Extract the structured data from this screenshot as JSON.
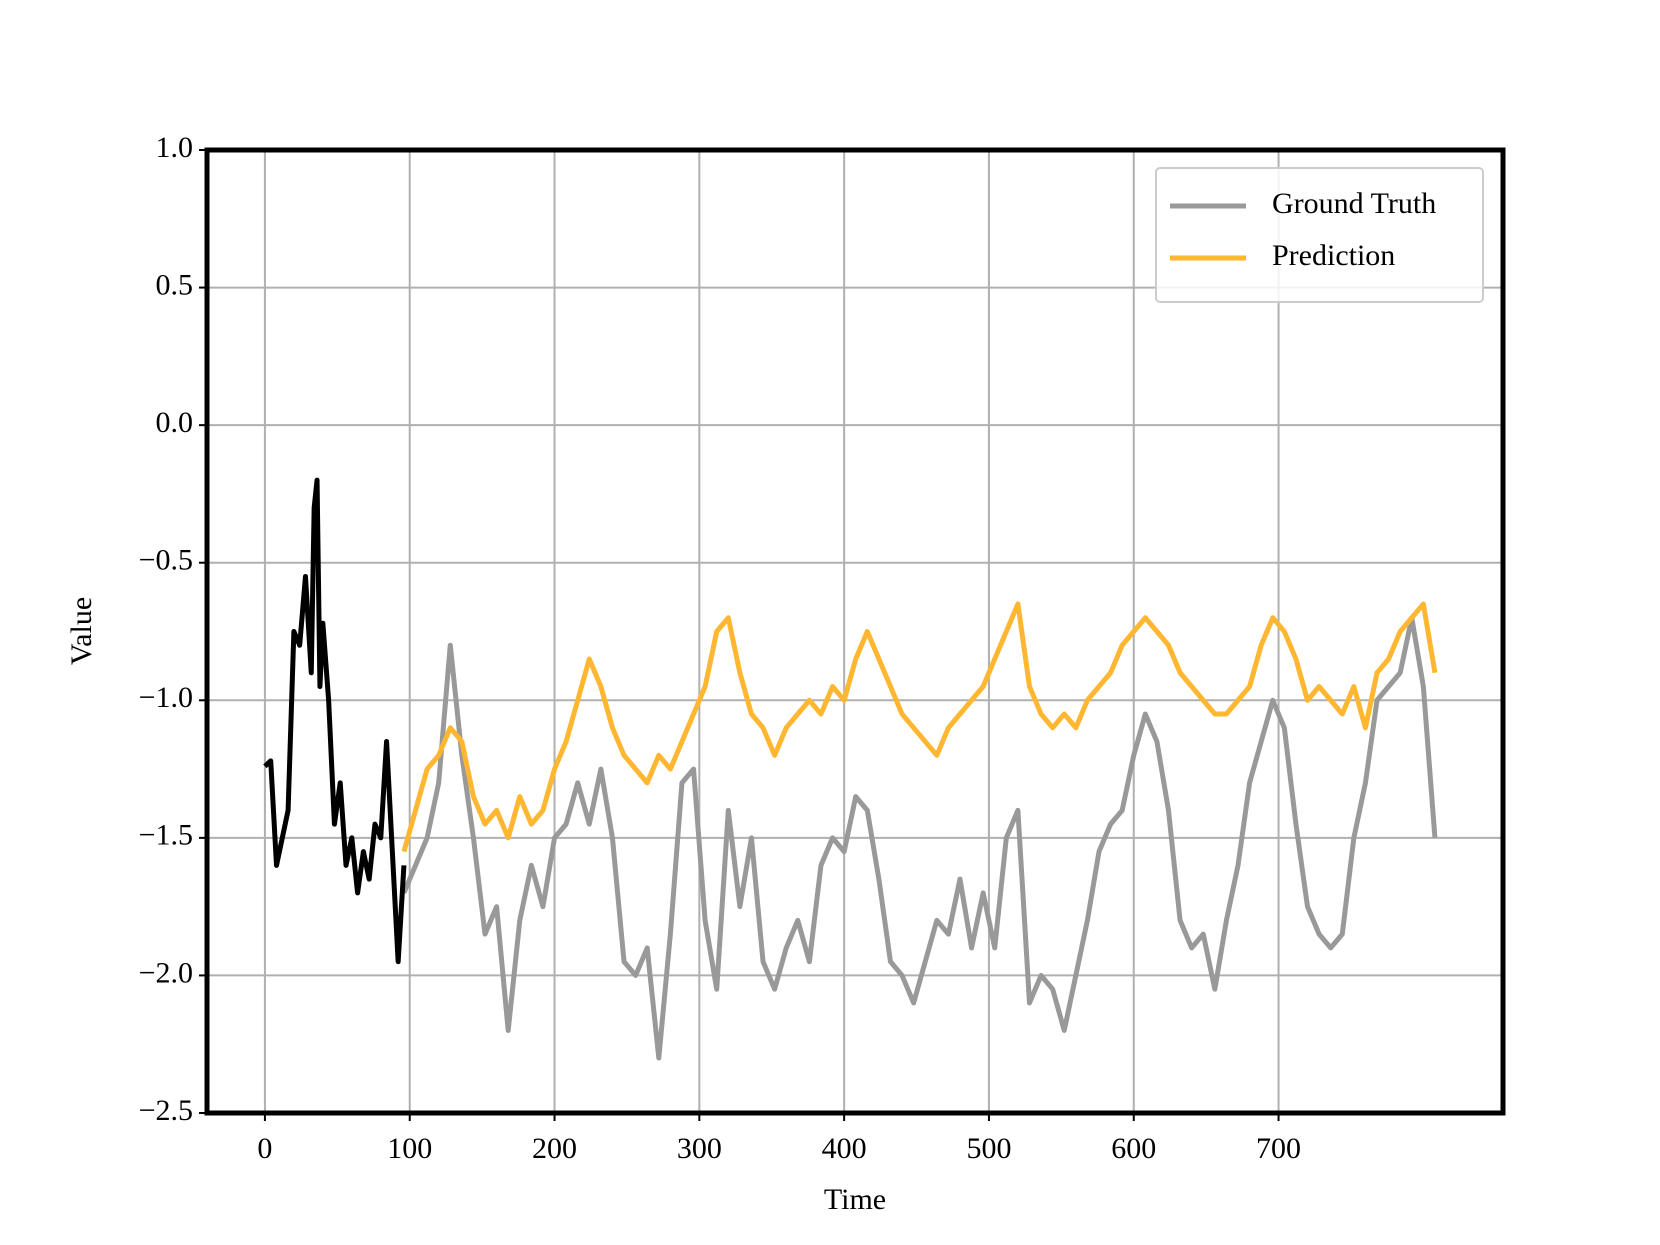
{
  "chart_data": {
    "type": "line",
    "xlabel": "Time",
    "ylabel": "Value",
    "xlim": [
      -40,
      855
    ],
    "ylim": [
      -2.5,
      1.0
    ],
    "xticks": [
      0,
      100,
      200,
      300,
      400,
      500,
      600,
      700
    ],
    "yticks": [
      {
        "value": 1.0,
        "label": "1.0"
      },
      0.5,
      {
        "value": 0.0,
        "label": "0.0"
      },
      {
        "value": -0.5,
        "label": "−0.5"
      },
      {
        "value": -1.0,
        "label": "−1.0"
      },
      {
        "value": -1.5,
        "label": "−1.5"
      },
      {
        "value": -2.0,
        "label": "−2.0"
      },
      {
        "value": -2.5,
        "label": "−2.5"
      }
    ],
    "grid": true,
    "legend": "upper right",
    "series": [
      {
        "name": "Ground Truth",
        "color": "#999999",
        "x": [
          96,
          104,
          112,
          120,
          128,
          136,
          144,
          152,
          160,
          168,
          176,
          184,
          192,
          200,
          208,
          216,
          224,
          232,
          240,
          248,
          256,
          264,
          272,
          280,
          288,
          296,
          304,
          312,
          320,
          328,
          336,
          344,
          352,
          360,
          368,
          376,
          384,
          392,
          400,
          408,
          416,
          424,
          432,
          440,
          448,
          456,
          464,
          472,
          480,
          488,
          496,
          504,
          512,
          520,
          528,
          536,
          544,
          552,
          560,
          568,
          576,
          584,
          592,
          600,
          608,
          616,
          624,
          632,
          640,
          648,
          656,
          664,
          672,
          680,
          688,
          696,
          704,
          712,
          720,
          728,
          736,
          744,
          752,
          760,
          768,
          776,
          784,
          792,
          800,
          808
        ],
        "values": [
          -1.7,
          -1.6,
          -1.5,
          -1.3,
          -0.8,
          -1.2,
          -1.5,
          -1.85,
          -1.75,
          -2.2,
          -1.8,
          -1.6,
          -1.75,
          -1.5,
          -1.45,
          -1.3,
          -1.45,
          -1.25,
          -1.5,
          -1.95,
          -2.0,
          -1.9,
          -2.3,
          -1.85,
          -1.3,
          -1.25,
          -1.8,
          -2.05,
          -1.4,
          -1.75,
          -1.5,
          -1.95,
          -2.05,
          -1.9,
          -1.8,
          -1.95,
          -1.6,
          -1.5,
          -1.55,
          -1.35,
          -1.4,
          -1.65,
          -1.95,
          -2.0,
          -2.1,
          -1.95,
          -1.8,
          -1.85,
          -1.65,
          -1.9,
          -1.7,
          -1.9,
          -1.5,
          -1.4,
          -2.1,
          -2.0,
          -2.05,
          -2.2,
          -2.0,
          -1.8,
          -1.55,
          -1.45,
          -1.4,
          -1.2,
          -1.05,
          -1.15,
          -1.4,
          -1.8,
          -1.9,
          -1.85,
          -2.05,
          -1.8,
          -1.6,
          -1.3,
          -1.15,
          -1.0,
          -1.1,
          -1.45,
          -1.75,
          -1.85,
          -1.9,
          -1.85,
          -1.5,
          -1.3,
          -1.0,
          -0.95,
          -0.9,
          -0.7,
          -0.95,
          -1.5
        ]
      },
      {
        "name": "Prediction",
        "color": "#ffb732",
        "x": [
          96,
          104,
          112,
          120,
          128,
          136,
          144,
          152,
          160,
          168,
          176,
          184,
          192,
          200,
          208,
          216,
          224,
          232,
          240,
          248,
          256,
          264,
          272,
          280,
          288,
          296,
          304,
          312,
          320,
          328,
          336,
          344,
          352,
          360,
          368,
          376,
          384,
          392,
          400,
          408,
          416,
          424,
          432,
          440,
          448,
          456,
          464,
          472,
          480,
          488,
          496,
          504,
          512,
          520,
          528,
          536,
          544,
          552,
          560,
          568,
          576,
          584,
          592,
          600,
          608,
          616,
          624,
          632,
          640,
          648,
          656,
          664,
          672,
          680,
          688,
          696,
          704,
          712,
          720,
          728,
          736,
          744,
          752,
          760,
          768,
          776,
          784,
          792,
          800,
          808
        ],
        "values": [
          -1.55,
          -1.4,
          -1.25,
          -1.2,
          -1.1,
          -1.15,
          -1.35,
          -1.45,
          -1.4,
          -1.5,
          -1.35,
          -1.45,
          -1.4,
          -1.25,
          -1.15,
          -1.0,
          -0.85,
          -0.95,
          -1.1,
          -1.2,
          -1.25,
          -1.3,
          -1.2,
          -1.25,
          -1.15,
          -1.05,
          -0.95,
          -0.75,
          -0.7,
          -0.9,
          -1.05,
          -1.1,
          -1.2,
          -1.1,
          -1.05,
          -1.0,
          -1.05,
          -0.95,
          -1.0,
          -0.85,
          -0.75,
          -0.85,
          -0.95,
          -1.05,
          -1.1,
          -1.15,
          -1.2,
          -1.1,
          -1.05,
          -1.0,
          -0.95,
          -0.85,
          -0.75,
          -0.65,
          -0.95,
          -1.05,
          -1.1,
          -1.05,
          -1.1,
          -1.0,
          -0.95,
          -0.9,
          -0.8,
          -0.75,
          -0.7,
          -0.75,
          -0.8,
          -0.9,
          -0.95,
          -1.0,
          -1.05,
          -1.05,
          -1.0,
          -0.95,
          -0.8,
          -0.7,
          -0.75,
          -0.85,
          -1.0,
          -0.95,
          -1.0,
          -1.05,
          -0.95,
          -1.1,
          -0.9,
          -0.85,
          -0.75,
          -0.7,
          -0.65,
          -0.9
        ]
      },
      {
        "color": "#000000",
        "x": [
          0,
          4,
          8,
          12,
          16,
          20,
          24,
          28,
          32,
          34,
          36,
          38,
          40,
          44,
          48,
          52,
          56,
          60,
          64,
          68,
          72,
          76,
          80,
          84,
          88,
          92,
          96
        ],
        "values": [
          -1.24,
          -1.22,
          -1.6,
          -1.5,
          -1.4,
          -0.75,
          -0.8,
          -0.55,
          -0.9,
          -0.3,
          -0.2,
          -0.95,
          -0.72,
          -1.0,
          -1.45,
          -1.3,
          -1.6,
          -1.5,
          -1.7,
          -1.55,
          -1.65,
          -1.45,
          -1.5,
          -1.15,
          -1.55,
          -1.95,
          -1.6
        ]
      }
    ]
  }
}
